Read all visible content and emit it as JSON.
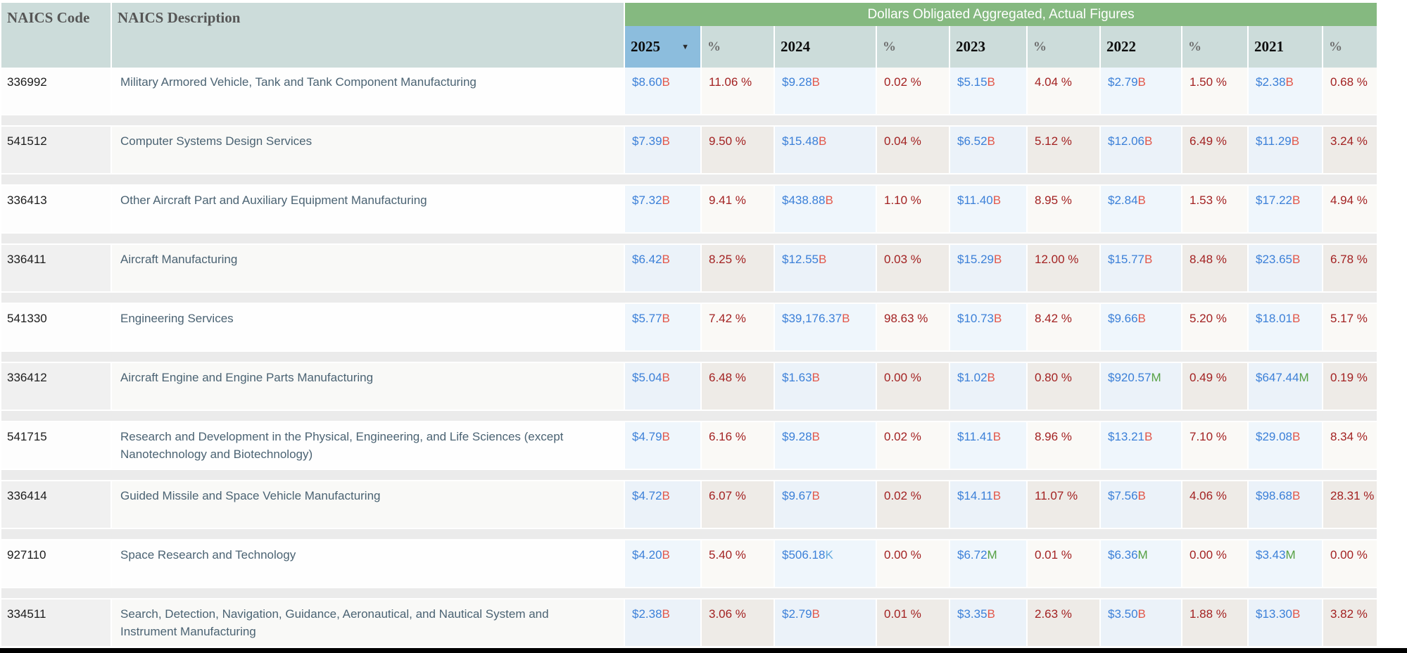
{
  "header": {
    "naics_code": "NAICS Code",
    "naics_description": "NAICS Description",
    "group_title": "Dollars Obligated Aggregated, Actual Figures",
    "years": [
      "2025",
      "2024",
      "2023",
      "2022",
      "2021"
    ],
    "pct": "%",
    "sorted_year": "2025",
    "sort_glyph": "▼"
  },
  "rows": [
    {
      "code": "336992",
      "description": "Military Armored Vehicle, Tank and Tank Component Manufacturing",
      "cells": [
        {
          "amount": "$8.60",
          "suffix": "B",
          "pct": "11.06 %"
        },
        {
          "amount": "$9.28",
          "suffix": "B",
          "pct": "0.02 %"
        },
        {
          "amount": "$5.15",
          "suffix": "B",
          "pct": "4.04 %"
        },
        {
          "amount": "$2.79",
          "suffix": "B",
          "pct": "1.50 %"
        },
        {
          "amount": "$2.38",
          "suffix": "B",
          "pct": "0.68 %"
        }
      ]
    },
    {
      "code": "541512",
      "description": "Computer Systems Design Services",
      "cells": [
        {
          "amount": "$7.39",
          "suffix": "B",
          "pct": "9.50 %"
        },
        {
          "amount": "$15.48",
          "suffix": "B",
          "pct": "0.04 %"
        },
        {
          "amount": "$6.52",
          "suffix": "B",
          "pct": "5.12 %"
        },
        {
          "amount": "$12.06",
          "suffix": "B",
          "pct": "6.49 %"
        },
        {
          "amount": "$11.29",
          "suffix": "B",
          "pct": "3.24 %"
        }
      ]
    },
    {
      "code": "336413",
      "description": "Other Aircraft Part and Auxiliary Equipment Manufacturing",
      "cells": [
        {
          "amount": "$7.32",
          "suffix": "B",
          "pct": "9.41 %"
        },
        {
          "amount": "$438.88",
          "suffix": "B",
          "pct": "1.10 %"
        },
        {
          "amount": "$11.40",
          "suffix": "B",
          "pct": "8.95 %"
        },
        {
          "amount": "$2.84",
          "suffix": "B",
          "pct": "1.53 %"
        },
        {
          "amount": "$17.22",
          "suffix": "B",
          "pct": "4.94 %"
        }
      ]
    },
    {
      "code": "336411",
      "description": "Aircraft Manufacturing",
      "cells": [
        {
          "amount": "$6.42",
          "suffix": "B",
          "pct": "8.25 %"
        },
        {
          "amount": "$12.55",
          "suffix": "B",
          "pct": "0.03 %"
        },
        {
          "amount": "$15.29",
          "suffix": "B",
          "pct": "12.00 %"
        },
        {
          "amount": "$15.77",
          "suffix": "B",
          "pct": "8.48 %"
        },
        {
          "amount": "$23.65",
          "suffix": "B",
          "pct": "6.78 %"
        }
      ]
    },
    {
      "code": "541330",
      "description": "Engineering Services",
      "cells": [
        {
          "amount": "$5.77",
          "suffix": "B",
          "pct": "7.42 %"
        },
        {
          "amount": "$39,176.37",
          "suffix": "B",
          "pct": "98.63 %"
        },
        {
          "amount": "$10.73",
          "suffix": "B",
          "pct": "8.42 %"
        },
        {
          "amount": "$9.66",
          "suffix": "B",
          "pct": "5.20 %"
        },
        {
          "amount": "$18.01",
          "suffix": "B",
          "pct": "5.17 %"
        }
      ]
    },
    {
      "code": "336412",
      "description": "Aircraft Engine and Engine Parts Manufacturing",
      "cells": [
        {
          "amount": "$5.04",
          "suffix": "B",
          "pct": "6.48 %"
        },
        {
          "amount": "$1.63",
          "suffix": "B",
          "pct": "0.00 %"
        },
        {
          "amount": "$1.02",
          "suffix": "B",
          "pct": "0.80 %"
        },
        {
          "amount": "$920.57",
          "suffix": "M",
          "pct": "0.49 %"
        },
        {
          "amount": "$647.44",
          "suffix": "M",
          "pct": "0.19 %"
        }
      ]
    },
    {
      "code": "541715",
      "description": "Research and Development in the Physical, Engineering, and Life Sciences (except Nanotechnology and Biotechnology)",
      "cells": [
        {
          "amount": "$4.79",
          "suffix": "B",
          "pct": "6.16 %"
        },
        {
          "amount": "$9.28",
          "suffix": "B",
          "pct": "0.02 %"
        },
        {
          "amount": "$11.41",
          "suffix": "B",
          "pct": "8.96 %"
        },
        {
          "amount": "$13.21",
          "suffix": "B",
          "pct": "7.10 %"
        },
        {
          "amount": "$29.08",
          "suffix": "B",
          "pct": "8.34 %"
        }
      ]
    },
    {
      "code": "336414",
      "description": "Guided Missile and Space Vehicle Manufacturing",
      "cells": [
        {
          "amount": "$4.72",
          "suffix": "B",
          "pct": "6.07 %"
        },
        {
          "amount": "$9.67",
          "suffix": "B",
          "pct": "0.02 %"
        },
        {
          "amount": "$14.11",
          "suffix": "B",
          "pct": "11.07 %"
        },
        {
          "amount": "$7.56",
          "suffix": "B",
          "pct": "4.06 %"
        },
        {
          "amount": "$98.68",
          "suffix": "B",
          "pct": "28.31 %"
        }
      ]
    },
    {
      "code": "927110",
      "description": "Space Research and Technology",
      "cells": [
        {
          "amount": "$4.20",
          "suffix": "B",
          "pct": "5.40 %"
        },
        {
          "amount": "$506.18",
          "suffix": "K",
          "pct": "0.00 %"
        },
        {
          "amount": "$6.72",
          "suffix": "M",
          "pct": "0.01 %"
        },
        {
          "amount": "$6.36",
          "suffix": "M",
          "pct": "0.00 %"
        },
        {
          "amount": "$3.43",
          "suffix": "M",
          "pct": "0.00 %"
        }
      ]
    },
    {
      "code": "334511",
      "description": "Search, Detection, Navigation, Guidance, Aeronautical, and Nautical System and Instrument Manufacturing",
      "cells": [
        {
          "amount": "$2.38",
          "suffix": "B",
          "pct": "3.06 %"
        },
        {
          "amount": "$2.79",
          "suffix": "B",
          "pct": "0.01 %"
        },
        {
          "amount": "$3.35",
          "suffix": "B",
          "pct": "2.63 %"
        },
        {
          "amount": "$3.50",
          "suffix": "B",
          "pct": "1.88 %"
        },
        {
          "amount": "$13.30",
          "suffix": "B",
          "pct": "3.82 %"
        }
      ]
    }
  ],
  "colors": {
    "group_header_green": "#85b980",
    "header_bg": "#ccdcda",
    "sorted_column_bg": "#8cbddd",
    "dollar_blue": "#3c80d8",
    "suffix_billions": "#e2584b",
    "suffix_millions": "#55a043",
    "suffix_thousands": "#64aade",
    "percent_red": "#a32222",
    "description_slate": "#4b6373"
  }
}
